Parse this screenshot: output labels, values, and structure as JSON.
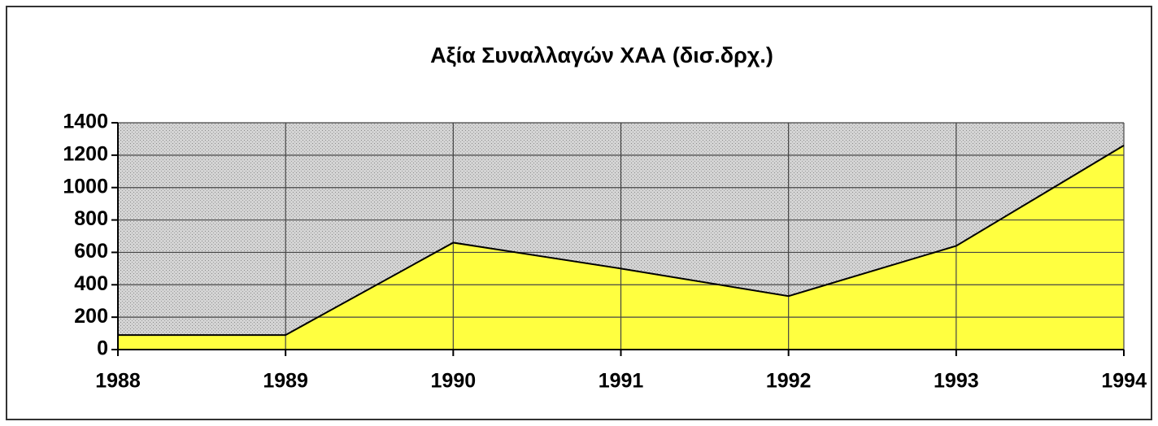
{
  "chart_data": {
    "type": "area",
    "title": "Αξία Συναλλαγών ΧΑΑ (δισ.δρχ.)",
    "x": [
      1988,
      1989,
      1990,
      1991,
      1992,
      1993,
      1994
    ],
    "values": [
      90,
      90,
      660,
      500,
      330,
      640,
      1260
    ],
    "color": "#ffff40",
    "xlim": [
      1988,
      1994
    ],
    "xticks": [
      1988,
      1989,
      1990,
      1991,
      1992,
      1993,
      1994
    ],
    "ylim": [
      0,
      1400
    ],
    "yticks": [
      0,
      200,
      400,
      600,
      800,
      1000,
      1200,
      1400
    ],
    "grid": true
  }
}
